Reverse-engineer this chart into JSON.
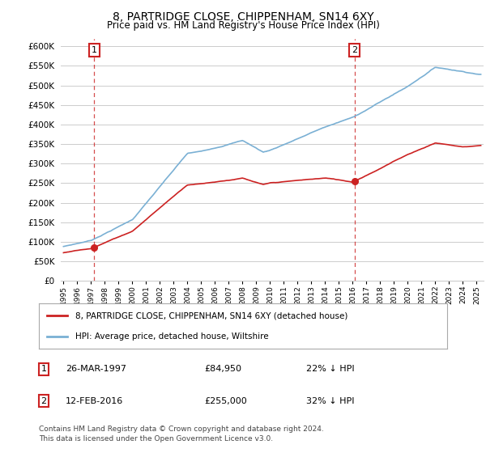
{
  "title": "8, PARTRIDGE CLOSE, CHIPPENHAM, SN14 6XY",
  "subtitle": "Price paid vs. HM Land Registry's House Price Index (HPI)",
  "ylim": [
    0,
    620000
  ],
  "yticks": [
    0,
    50000,
    100000,
    150000,
    200000,
    250000,
    300000,
    350000,
    400000,
    450000,
    500000,
    550000,
    600000
  ],
  "xlim_start": 1994.8,
  "xlim_end": 2025.5,
  "background_color": "#ffffff",
  "grid_color": "#cccccc",
  "sale1_date": 1997.23,
  "sale1_price": 84950,
  "sale1_label": "1",
  "sale2_date": 2016.12,
  "sale2_price": 255000,
  "sale2_label": "2",
  "hpi_color": "#7ab0d4",
  "price_color": "#cc2222",
  "legend_label_price": "8, PARTRIDGE CLOSE, CHIPPENHAM, SN14 6XY (detached house)",
  "legend_label_hpi": "HPI: Average price, detached house, Wiltshire",
  "footnote1": "Contains HM Land Registry data © Crown copyright and database right 2024.",
  "footnote2": "This data is licensed under the Open Government Licence v3.0.",
  "info1_num": "1",
  "info1_date": "26-MAR-1997",
  "info1_price": "£84,950",
  "info1_hpi": "22% ↓ HPI",
  "info2_num": "2",
  "info2_date": "12-FEB-2016",
  "info2_price": "£255,000",
  "info2_hpi": "32% ↓ HPI"
}
